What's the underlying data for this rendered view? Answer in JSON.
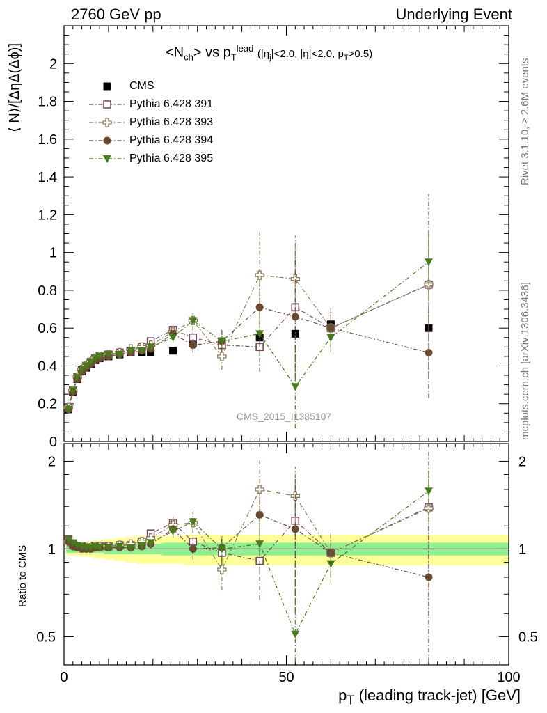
{
  "header": {
    "left": "2760 GeV pp",
    "right": "Underlying Event"
  },
  "side_text": {
    "rivet": "Rivet 3.1.10, ≥ 2.6M events",
    "mcplots": "mcplots.cern.ch [arXiv:1306.3436]"
  },
  "watermark": "CMS_2015_I1385107",
  "title": {
    "n": "<N",
    "n_sub": "ch",
    "mid": "> vs p",
    "p_sub": "T",
    "p_sup": "lead",
    "cut_a": "(|η",
    "cut_a_sub": "j",
    "cut_b": "|<2.0, |η|<2.0, p",
    "cut_b_sub": "T",
    "cut_c": ">0.5)"
  },
  "labels": {
    "ylabel_main": "⟨ N⟩/[ΔηΔ(Δϕ)]",
    "ylabel_ratio": "Ratio to CMS",
    "xlabel_p": "p",
    "xlabel_sub": "T",
    "xlabel_rest": " (leading track-jet) [GeV]"
  },
  "chart_data": [
    {
      "type": "scatter",
      "title": "<Nch> vs pT lead (|ηj|<2.0, |η|<2.0, pT>0.5)",
      "xlabel": "pT (leading track-jet) [GeV]",
      "ylabel": "⟨ N⟩/[ΔηΔ(Δϕ)]",
      "xlim": [
        0,
        100
      ],
      "ylim": [
        0,
        2.2
      ],
      "x_ticks": [
        "0",
        "50",
        "100"
      ],
      "y_ticks": [
        "0",
        "0.2",
        "0.4",
        "0.6",
        "0.8",
        "1",
        "1.2",
        "1.4",
        "1.6",
        "1.8",
        "2"
      ],
      "legend_position": "top-left",
      "x": [
        1,
        2,
        3,
        4,
        5,
        6,
        7,
        8,
        10,
        12.5,
        15,
        17.5,
        19.5,
        24.5,
        29,
        35.5,
        44,
        52,
        60,
        82
      ],
      "series": [
        {
          "name": "CMS",
          "color": "#000000",
          "marker": "square-filled",
          "errors": false,
          "values": [
            0.17,
            0.26,
            0.33,
            0.37,
            0.39,
            0.41,
            0.43,
            0.44,
            0.45,
            0.46,
            0.47,
            0.47,
            0.47,
            0.48,
            0.52,
            0.53,
            0.55,
            0.57,
            0.62,
            0.6
          ]
        },
        {
          "name": "Pythia 6.428 391",
          "color": "#7a4a5e",
          "marker": "square-open",
          "values": [
            0.18,
            0.27,
            0.34,
            0.38,
            0.4,
            0.42,
            0.44,
            0.45,
            0.46,
            0.47,
            0.48,
            0.5,
            0.53,
            0.59,
            0.55,
            0.51,
            0.5,
            0.71,
            0.6,
            0.83
          ],
          "err": [
            0.01,
            0.01,
            0.01,
            0.01,
            0.01,
            0.01,
            0.01,
            0.01,
            0.01,
            0.01,
            0.01,
            0.01,
            0.02,
            0.03,
            0.04,
            0.05,
            0.13,
            0.32,
            0.1,
            0.48
          ]
        },
        {
          "name": "Pythia 6.428 393",
          "color": "#8b7a55",
          "marker": "cross-open",
          "values": [
            0.18,
            0.27,
            0.34,
            0.38,
            0.4,
            0.42,
            0.44,
            0.45,
            0.46,
            0.47,
            0.49,
            0.5,
            0.51,
            0.58,
            0.64,
            0.45,
            0.88,
            0.86,
            0.6,
            0.83
          ],
          "err": [
            0.01,
            0.01,
            0.01,
            0.01,
            0.01,
            0.01,
            0.01,
            0.01,
            0.01,
            0.01,
            0.01,
            0.01,
            0.02,
            0.03,
            0.05,
            0.07,
            0.24,
            0.23,
            0.11,
            0.27
          ]
        },
        {
          "name": "Pythia 6.428 394",
          "color": "#6b4a33",
          "marker": "circle-filled",
          "values": [
            0.17,
            0.26,
            0.33,
            0.37,
            0.39,
            0.41,
            0.43,
            0.44,
            0.45,
            0.46,
            0.47,
            0.48,
            0.49,
            0.57,
            0.51,
            0.53,
            0.71,
            0.66,
            0.6,
            0.47
          ],
          "err": [
            0.01,
            0.01,
            0.01,
            0.01,
            0.01,
            0.01,
            0.01,
            0.01,
            0.01,
            0.01,
            0.01,
            0.01,
            0.02,
            0.03,
            0.04,
            0.06,
            0.14,
            0.32,
            0.1,
            0.24
          ]
        },
        {
          "name": "Pythia 6.428 395",
          "color": "#4a7a1e",
          "marker": "triangle-down-filled",
          "values": [
            0.17,
            0.27,
            0.34,
            0.38,
            0.4,
            0.42,
            0.44,
            0.45,
            0.46,
            0.46,
            0.48,
            0.48,
            0.5,
            0.55,
            0.64,
            0.53,
            0.57,
            0.29,
            0.55,
            0.95
          ],
          "err": [
            0.01,
            0.01,
            0.01,
            0.01,
            0.01,
            0.01,
            0.01,
            0.01,
            0.01,
            0.01,
            0.01,
            0.01,
            0.02,
            0.03,
            0.05,
            0.05,
            0.12,
            0.22,
            0.08,
            0.17
          ]
        }
      ]
    },
    {
      "type": "scatter",
      "ylabel": "Ratio to CMS",
      "xlim": [
        0,
        100
      ],
      "ylim": [
        0.4,
        2.3
      ],
      "y_scale": "log",
      "y_ticks": [
        "0.5",
        "1",
        "2"
      ],
      "reference_line": 1,
      "band_colors": {
        "inner": "#90f090",
        "outer": "#ffff99"
      },
      "band_inner": [
        0.03,
        0.03,
        0.03,
        0.03,
        0.03,
        0.03,
        0.03,
        0.03,
        0.04,
        0.04,
        0.04,
        0.04,
        0.04,
        0.05,
        0.05,
        0.05,
        0.05,
        0.05,
        0.05,
        0.05
      ],
      "band_outer": [
        0.05,
        0.05,
        0.05,
        0.06,
        0.06,
        0.06,
        0.07,
        0.07,
        0.08,
        0.09,
        0.1,
        0.11,
        0.11,
        0.11,
        0.12,
        0.12,
        0.12,
        0.12,
        0.12,
        0.12
      ],
      "series": [
        {
          "name": "Pythia 6.428 391",
          "values": [
            1.08,
            1.04,
            1.02,
            1.02,
            1.01,
            1.01,
            1.02,
            1.02,
            1.02,
            1.03,
            1.03,
            1.06,
            1.13,
            1.23,
            1.06,
            0.97,
            0.91,
            1.25,
            0.97,
            1.39
          ],
          "err": [
            0.02,
            0.02,
            0.02,
            0.02,
            0.02,
            0.02,
            0.02,
            0.02,
            0.02,
            0.02,
            0.03,
            0.03,
            0.04,
            0.06,
            0.08,
            0.1,
            0.24,
            0.56,
            0.16,
            0.8
          ]
        },
        {
          "name": "Pythia 6.428 393",
          "values": [
            1.06,
            1.04,
            1.02,
            1.02,
            1.01,
            1.01,
            1.02,
            1.02,
            1.02,
            1.03,
            1.04,
            1.06,
            1.09,
            1.21,
            1.23,
            0.85,
            1.6,
            1.52,
            0.97,
            1.38
          ],
          "err": [
            0.02,
            0.02,
            0.02,
            0.02,
            0.02,
            0.02,
            0.02,
            0.02,
            0.02,
            0.02,
            0.03,
            0.03,
            0.04,
            0.06,
            0.1,
            0.13,
            0.44,
            0.4,
            0.17,
            0.45
          ]
        },
        {
          "name": "Pythia 6.428 394",
          "values": [
            1.06,
            1.02,
            1.01,
            1.0,
            1.0,
            1.0,
            1.01,
            1.01,
            1.01,
            1.01,
            1.01,
            1.02,
            1.04,
            1.17,
            1.0,
            1.01,
            1.31,
            1.17,
            0.97,
            0.8
          ],
          "err": [
            0.02,
            0.02,
            0.02,
            0.02,
            0.02,
            0.02,
            0.02,
            0.02,
            0.02,
            0.02,
            0.03,
            0.03,
            0.04,
            0.06,
            0.08,
            0.11,
            0.25,
            0.56,
            0.16,
            0.4
          ]
        },
        {
          "name": "Pythia 6.428 395",
          "values": [
            1.08,
            1.05,
            1.03,
            1.02,
            1.01,
            1.01,
            1.02,
            1.01,
            1.01,
            1.02,
            1.01,
            1.03,
            1.05,
            1.15,
            1.24,
            1.0,
            1.04,
            0.51,
            0.89,
            1.58
          ],
          "err": [
            0.02,
            0.02,
            0.02,
            0.02,
            0.02,
            0.02,
            0.02,
            0.02,
            0.02,
            0.02,
            0.03,
            0.03,
            0.04,
            0.06,
            0.1,
            0.09,
            0.22,
            0.39,
            0.13,
            0.28
          ]
        }
      ]
    }
  ]
}
